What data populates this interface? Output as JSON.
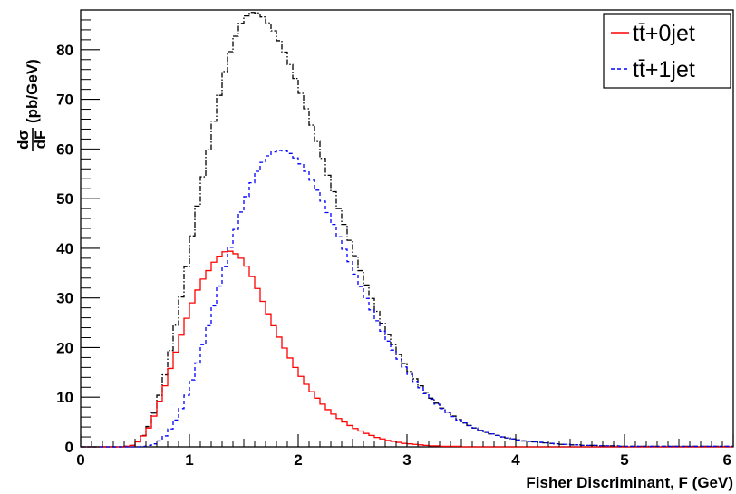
{
  "chart_data": {
    "type": "line",
    "style": "step-histogram",
    "xlabel": "Fisher Discriminant, F (GeV)",
    "ylabel": "dσ/dF (pb/GeV)",
    "ylabel_fraction_num": "dσ",
    "ylabel_fraction_den": "dF",
    "ylabel_unit": "(pb/GeV)",
    "xlim": [
      0,
      6
    ],
    "ylim": [
      0,
      88
    ],
    "xticks": [
      "0",
      "1",
      "2",
      "3",
      "4",
      "5",
      "6"
    ],
    "yticks": [
      "0",
      "10",
      "20",
      "30",
      "40",
      "50",
      "60",
      "70",
      "80"
    ],
    "legend_position": "top-right",
    "grid": false,
    "bin_width": 0.05,
    "series": [
      {
        "name": "tt̄+0jet",
        "legend_label": "tt̄+0jet",
        "color": "#ff0000",
        "dash": "solid",
        "in_legend": true,
        "values": [
          0,
          0,
          0,
          0,
          0,
          0,
          0,
          0,
          0.1,
          0.3,
          1.0,
          2.2,
          3.8,
          6.2,
          9.2,
          12.3,
          15.8,
          19.1,
          22.5,
          25.9,
          29.0,
          31.6,
          33.8,
          35.5,
          37.2,
          38.4,
          39.3,
          39.4,
          38.9,
          38.0,
          36.4,
          34.3,
          31.9,
          29.3,
          26.8,
          24.4,
          22.1,
          19.9,
          17.9,
          16.0,
          14.2,
          12.6,
          11.1,
          9.8,
          8.6,
          7.5,
          6.6,
          5.7,
          5.0,
          4.3,
          3.7,
          3.2,
          2.7,
          2.3,
          1.9,
          1.6,
          1.3,
          1.1,
          0.9,
          0.7,
          0.6,
          0.5,
          0.4,
          0.3,
          0.2,
          0.2,
          0.1,
          0.1,
          0.1,
          0.1,
          0,
          0,
          0,
          0,
          0,
          0,
          0,
          0,
          0,
          0,
          0,
          0,
          0,
          0,
          0,
          0,
          0,
          0,
          0,
          0,
          0,
          0,
          0,
          0,
          0,
          0,
          0,
          0,
          0,
          0,
          0,
          0,
          0,
          0,
          0,
          0,
          0,
          0,
          0,
          0,
          0,
          0,
          0,
          0,
          0,
          0,
          0,
          0,
          0,
          0
        ]
      },
      {
        "name": "tt̄+1jet",
        "legend_label": "tt̄+1jet",
        "color": "#0000ff",
        "dash": "dashed",
        "in_legend": true,
        "values": [
          0,
          0,
          0,
          0,
          0,
          0,
          0,
          0,
          0,
          0,
          0,
          0.1,
          0.3,
          0.6,
          1.2,
          2.2,
          3.6,
          5.4,
          7.7,
          10.4,
          13.5,
          16.9,
          20.6,
          24.4,
          28.4,
          32.4,
          36.3,
          40.2,
          43.8,
          47.3,
          50.4,
          53.2,
          55.5,
          57.3,
          58.6,
          59.4,
          59.7,
          59.6,
          59.1,
          58.2,
          57.0,
          55.5,
          53.7,
          51.7,
          49.5,
          47.2,
          44.8,
          42.3,
          39.8,
          37.3,
          34.8,
          32.3,
          29.9,
          27.6,
          25.4,
          23.3,
          21.3,
          19.5,
          17.7,
          16.1,
          14.6,
          13.2,
          11.9,
          10.7,
          9.6,
          8.6,
          7.7,
          6.9,
          6.1,
          5.4,
          4.8,
          4.3,
          3.8,
          3.3,
          2.9,
          2.6,
          2.3,
          2.0,
          1.8,
          1.6,
          1.4,
          1.2,
          1.1,
          1.0,
          0.9,
          0.8,
          0.7,
          0.6,
          0.5,
          0.5,
          0.4,
          0.4,
          0.3,
          0.3,
          0.3,
          0.2,
          0.2,
          0.2,
          0.2,
          0.1,
          0.1,
          0.1,
          0.1,
          0.1,
          0.1,
          0.1,
          0.1,
          0.1,
          0.1,
          0.1,
          0.1,
          0.1,
          0.1,
          0.1,
          0.1,
          0.1,
          0.1,
          0.1,
          0.1,
          0.1
        ]
      },
      {
        "name": "total",
        "color": "#000000",
        "dash": "dashdot",
        "in_legend": false,
        "values": [
          0,
          0,
          0,
          0,
          0,
          0,
          0,
          0,
          0.1,
          0.3,
          1.0,
          2.3,
          4.1,
          6.8,
          10.4,
          14.5,
          19.4,
          24.5,
          30.2,
          36.3,
          42.5,
          48.5,
          54.4,
          59.9,
          65.6,
          70.8,
          75.6,
          79.6,
          82.7,
          85.3,
          86.8,
          87.5,
          87.4,
          86.6,
          85.4,
          83.8,
          81.8,
          79.5,
          77.0,
          74.2,
          71.2,
          68.1,
          64.8,
          61.5,
          58.1,
          54.7,
          51.4,
          48.0,
          44.8,
          41.6,
          38.5,
          35.5,
          32.6,
          29.9,
          27.3,
          24.9,
          22.6,
          20.6,
          18.6,
          16.8,
          15.2,
          13.7,
          12.3,
          11.0,
          9.8,
          8.8,
          7.8,
          7.0,
          6.2,
          5.5,
          4.8,
          4.3,
          3.8,
          3.3,
          2.9,
          2.6,
          2.3,
          2.0,
          1.8,
          1.6,
          1.4,
          1.2,
          1.1,
          1.0,
          0.9,
          0.8,
          0.7,
          0.6,
          0.5,
          0.5,
          0.4,
          0.4,
          0.3,
          0.3,
          0.3,
          0.2,
          0.2,
          0.2,
          0.2,
          0.1,
          0.1,
          0.1,
          0.1,
          0.1,
          0.1,
          0.1,
          0.1,
          0.1,
          0.1,
          0.1,
          0.1,
          0.1,
          0.1,
          0.1,
          0.1,
          0.1,
          0.1,
          0.1,
          0.1,
          0.1
        ]
      }
    ]
  }
}
